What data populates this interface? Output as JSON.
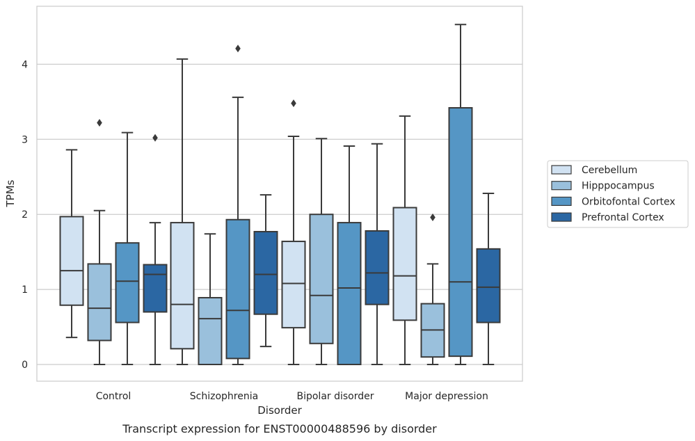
{
  "chart_data": {
    "type": "box",
    "caption": "Transcript expression for ENST00000488596 by disorder",
    "xlabel": "Disorder",
    "ylabel": "TPMs",
    "ylim": [
      -0.22,
      4.85
    ],
    "yticks": [
      0,
      1,
      2,
      3,
      4
    ],
    "grid": "horizontal",
    "legend_position": "right",
    "categories": [
      "Control",
      "Schizophrenia",
      "Bipolar disorder",
      "Major depression"
    ],
    "series": [
      {
        "name": "Cerebellum",
        "color": "#d1e2f2",
        "boxes": [
          {
            "whisker_low": 0.36,
            "q1": 0.79,
            "median": 1.25,
            "q3": 1.97,
            "whisker_high": 2.86,
            "outliers": []
          },
          {
            "whisker_low": 0.0,
            "q1": 0.21,
            "median": 0.8,
            "q3": 1.89,
            "whisker_high": 4.07,
            "outliers": []
          },
          {
            "whisker_low": 0.0,
            "q1": 0.49,
            "median": 1.08,
            "q3": 1.64,
            "whisker_high": 3.04,
            "outliers": [
              3.48
            ]
          },
          {
            "whisker_low": 0.0,
            "q1": 0.59,
            "median": 1.18,
            "q3": 2.09,
            "whisker_high": 3.31,
            "outliers": []
          }
        ]
      },
      {
        "name": "Hipppocampus",
        "color": "#9ac0dc",
        "boxes": [
          {
            "whisker_low": 0.0,
            "q1": 0.32,
            "median": 0.75,
            "q3": 1.34,
            "whisker_high": 2.05,
            "outliers": [
              3.22
            ]
          },
          {
            "whisker_low": 0.0,
            "q1": 0.0,
            "median": 0.61,
            "q3": 0.89,
            "whisker_high": 1.74,
            "outliers": []
          },
          {
            "whisker_low": 0.0,
            "q1": 0.28,
            "median": 0.92,
            "q3": 2.0,
            "whisker_high": 3.01,
            "outliers": []
          },
          {
            "whisker_low": 0.0,
            "q1": 0.1,
            "median": 0.46,
            "q3": 0.81,
            "whisker_high": 1.34,
            "outliers": [
              1.96
            ]
          }
        ]
      },
      {
        "name": "Orbitofontal Cortex",
        "color": "#5596c5",
        "boxes": [
          {
            "whisker_low": 0.0,
            "q1": 0.56,
            "median": 1.11,
            "q3": 1.62,
            "whisker_high": 3.09,
            "outliers": []
          },
          {
            "whisker_low": 0.0,
            "q1": 0.08,
            "median": 0.72,
            "q3": 1.93,
            "whisker_high": 3.56,
            "outliers": [
              4.21
            ]
          },
          {
            "whisker_low": 0.0,
            "q1": 0.0,
            "median": 1.02,
            "q3": 1.89,
            "whisker_high": 2.91,
            "outliers": []
          },
          {
            "whisker_low": 0.0,
            "q1": 0.11,
            "median": 1.1,
            "q3": 3.42,
            "whisker_high": 4.53,
            "outliers": []
          }
        ]
      },
      {
        "name": "Prefrontal Cortex",
        "color": "#2b67a3",
        "boxes": [
          {
            "whisker_low": 0.0,
            "q1": 0.7,
            "median": 1.2,
            "q3": 1.33,
            "whisker_high": 1.89,
            "outliers": [
              3.02
            ]
          },
          {
            "whisker_low": 0.24,
            "q1": 0.67,
            "median": 1.2,
            "q3": 1.77,
            "whisker_high": 2.26,
            "outliers": []
          },
          {
            "whisker_low": 0.0,
            "q1": 0.8,
            "median": 1.22,
            "q3": 1.78,
            "whisker_high": 2.94,
            "outliers": []
          },
          {
            "whisker_low": 0.0,
            "q1": 0.56,
            "median": 1.03,
            "q3": 1.54,
            "whisker_high": 2.28,
            "outliers": []
          }
        ]
      }
    ]
  }
}
